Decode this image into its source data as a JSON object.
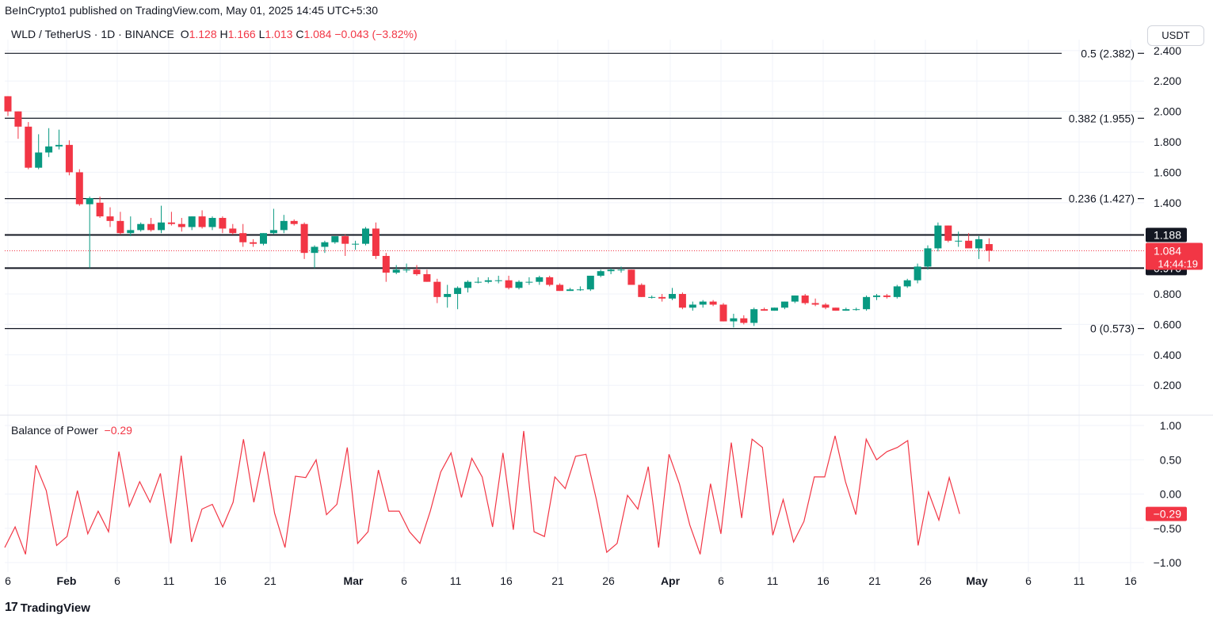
{
  "publisher_line": "BeInCrypto1 published on TradingView.com, May 01, 2025 14:45 UTC+5:30",
  "header": {
    "symbol": "WLD / TetherUS · 1D · BINANCE",
    "open_label": "O",
    "open": "1.128",
    "high_label": "H",
    "high": "1.166",
    "low_label": "L",
    "low": "1.013",
    "close_label": "C",
    "close": "1.084",
    "change": "−0.043 (−3.82%)"
  },
  "currency_button": "USDT",
  "brand": {
    "logo": "17",
    "name": "TradingView"
  },
  "colors": {
    "up": "#089981",
    "down": "#f23645",
    "grid": "#f0f3fa",
    "line": "#131722",
    "bop": "#f23645"
  },
  "chart_data": [
    {
      "type": "candlestick",
      "title": "WLD / TetherUS · 1D · BINANCE",
      "ylabel": "USDT",
      "ylim": [
        0.05,
        2.42
      ],
      "y_ticks": [
        "2.400",
        "2.200",
        "2.000",
        "1.800",
        "1.600",
        "1.400",
        "0.800",
        "0.600",
        "0.400",
        "0.200"
      ],
      "x_ticks": [
        "6",
        "Feb",
        "6",
        "11",
        "16",
        "21",
        "Mar",
        "6",
        "11",
        "16",
        "21",
        "26",
        "Apr",
        "6",
        "11",
        "16",
        "21",
        "26",
        "May",
        "6",
        "11",
        "16"
      ],
      "candles_ohlc": [
        [
          2.1,
          2.1,
          1.97,
          2.0
        ],
        [
          2.0,
          2.0,
          1.82,
          1.9
        ],
        [
          1.9,
          1.93,
          1.62,
          1.63
        ],
        [
          1.63,
          1.85,
          1.62,
          1.73
        ],
        [
          1.73,
          1.89,
          1.7,
          1.77
        ],
        [
          1.77,
          1.88,
          1.75,
          1.78
        ],
        [
          1.78,
          1.81,
          1.58,
          1.6
        ],
        [
          1.6,
          1.62,
          1.38,
          1.39
        ],
        [
          1.39,
          1.44,
          0.97,
          1.43
        ],
        [
          1.4,
          1.44,
          1.3,
          1.31
        ],
        [
          1.31,
          1.37,
          1.24,
          1.28
        ],
        [
          1.28,
          1.34,
          1.19,
          1.2
        ],
        [
          1.2,
          1.31,
          1.18,
          1.22
        ],
        [
          1.22,
          1.27,
          1.21,
          1.26
        ],
        [
          1.26,
          1.3,
          1.21,
          1.22
        ],
        [
          1.22,
          1.38,
          1.2,
          1.27
        ],
        [
          1.27,
          1.34,
          1.25,
          1.26
        ],
        [
          1.26,
          1.3,
          1.21,
          1.24
        ],
        [
          1.24,
          1.31,
          1.22,
          1.31
        ],
        [
          1.31,
          1.35,
          1.23,
          1.24
        ],
        [
          1.24,
          1.31,
          1.22,
          1.3
        ],
        [
          1.3,
          1.31,
          1.2,
          1.23
        ],
        [
          1.23,
          1.26,
          1.19,
          1.2
        ],
        [
          1.2,
          1.26,
          1.11,
          1.14
        ],
        [
          1.14,
          1.16,
          1.11,
          1.13
        ],
        [
          1.13,
          1.2,
          1.12,
          1.2
        ],
        [
          1.2,
          1.36,
          1.19,
          1.22
        ],
        [
          1.22,
          1.32,
          1.2,
          1.28
        ],
        [
          1.28,
          1.29,
          1.25,
          1.26
        ],
        [
          1.26,
          1.27,
          1.03,
          1.07
        ],
        [
          1.07,
          1.12,
          0.97,
          1.11
        ],
        [
          1.11,
          1.15,
          1.07,
          1.14
        ],
        [
          1.14,
          1.18,
          1.13,
          1.18
        ],
        [
          1.18,
          1.19,
          1.05,
          1.13
        ],
        [
          1.13,
          1.15,
          1.09,
          1.13
        ],
        [
          1.13,
          1.24,
          1.12,
          1.23
        ],
        [
          1.23,
          1.27,
          1.03,
          1.05
        ],
        [
          1.05,
          1.07,
          0.88,
          0.94
        ],
        [
          0.94,
          0.99,
          0.93,
          0.96
        ],
        [
          0.96,
          1.0,
          0.94,
          0.96
        ],
        [
          0.96,
          0.99,
          0.92,
          0.93
        ],
        [
          0.93,
          0.96,
          0.88,
          0.88
        ],
        [
          0.88,
          0.9,
          0.74,
          0.78
        ],
        [
          0.78,
          0.86,
          0.71,
          0.8
        ],
        [
          0.8,
          0.85,
          0.7,
          0.84
        ],
        [
          0.84,
          0.89,
          0.81,
          0.88
        ],
        [
          0.88,
          0.91,
          0.87,
          0.88
        ],
        [
          0.88,
          0.91,
          0.87,
          0.89
        ],
        [
          0.89,
          0.92,
          0.87,
          0.89
        ],
        [
          0.89,
          0.92,
          0.83,
          0.84
        ],
        [
          0.84,
          0.89,
          0.83,
          0.88
        ],
        [
          0.88,
          0.91,
          0.86,
          0.88
        ],
        [
          0.88,
          0.92,
          0.86,
          0.91
        ],
        [
          0.91,
          0.92,
          0.85,
          0.86
        ],
        [
          0.86,
          0.87,
          0.82,
          0.82
        ],
        [
          0.82,
          0.84,
          0.82,
          0.83
        ],
        [
          0.83,
          0.85,
          0.82,
          0.83
        ],
        [
          0.83,
          0.92,
          0.82,
          0.92
        ],
        [
          0.92,
          0.96,
          0.91,
          0.95
        ],
        [
          0.95,
          0.97,
          0.93,
          0.96
        ],
        [
          0.96,
          0.98,
          0.94,
          0.96
        ],
        [
          0.96,
          0.96,
          0.86,
          0.86
        ],
        [
          0.86,
          0.87,
          0.78,
          0.78
        ],
        [
          0.78,
          0.79,
          0.77,
          0.78
        ],
        [
          0.78,
          0.8,
          0.75,
          0.77
        ],
        [
          0.77,
          0.84,
          0.76,
          0.8
        ],
        [
          0.8,
          0.81,
          0.7,
          0.71
        ],
        [
          0.71,
          0.75,
          0.69,
          0.73
        ],
        [
          0.73,
          0.76,
          0.71,
          0.75
        ],
        [
          0.75,
          0.76,
          0.72,
          0.73
        ],
        [
          0.73,
          0.74,
          0.62,
          0.62
        ],
        [
          0.62,
          0.67,
          0.58,
          0.64
        ],
        [
          0.64,
          0.66,
          0.6,
          0.61
        ],
        [
          0.61,
          0.71,
          0.59,
          0.7
        ],
        [
          0.7,
          0.71,
          0.69,
          0.69
        ],
        [
          0.69,
          0.71,
          0.69,
          0.71
        ],
        [
          0.71,
          0.75,
          0.7,
          0.75
        ],
        [
          0.75,
          0.79,
          0.74,
          0.79
        ],
        [
          0.79,
          0.8,
          0.73,
          0.74
        ],
        [
          0.74,
          0.77,
          0.72,
          0.73
        ],
        [
          0.73,
          0.74,
          0.7,
          0.71
        ],
        [
          0.71,
          0.71,
          0.69,
          0.69
        ],
        [
          0.69,
          0.71,
          0.69,
          0.7
        ],
        [
          0.7,
          0.71,
          0.69,
          0.7
        ],
        [
          0.7,
          0.79,
          0.69,
          0.78
        ],
        [
          0.78,
          0.8,
          0.76,
          0.79
        ],
        [
          0.79,
          0.8,
          0.77,
          0.78
        ],
        [
          0.78,
          0.86,
          0.77,
          0.85
        ],
        [
          0.85,
          0.9,
          0.84,
          0.89
        ],
        [
          0.89,
          1.0,
          0.87,
          0.98
        ],
        [
          0.98,
          1.12,
          0.96,
          1.1
        ],
        [
          1.1,
          1.27,
          1.08,
          1.25
        ],
        [
          1.25,
          1.25,
          1.14,
          1.15
        ],
        [
          1.15,
          1.21,
          1.11,
          1.15
        ],
        [
          1.15,
          1.2,
          1.11,
          1.1
        ],
        [
          1.1,
          1.18,
          1.03,
          1.16
        ],
        [
          1.128,
          1.166,
          1.013,
          1.084
        ]
      ],
      "candle_dates_note": "",
      "last_price": "1.084",
      "countdown": "14:44:19",
      "levels": [
        {
          "value": 2.382,
          "label": "0.5 (2.382)"
        },
        {
          "value": 1.955,
          "label": "0.382 (1.955)"
        },
        {
          "value": 1.427,
          "label": "0.236 (1.427)"
        },
        {
          "value": 0.573,
          "label": "0 (0.573)"
        }
      ],
      "horizontal_lines": [
        {
          "value": 1.188,
          "label": "1.188"
        },
        {
          "value": 0.97,
          "label": "0.970"
        }
      ]
    },
    {
      "type": "line",
      "title": "Balance of Power",
      "current_value": "−0.29",
      "ylim": [
        -1.0,
        1.0
      ],
      "y_ticks": [
        "1.00",
        "0.50",
        "0.00",
        "−0.50",
        "−1.00"
      ],
      "values": [
        -0.78,
        -0.48,
        -0.88,
        0.42,
        0.05,
        -0.75,
        -0.62,
        0.05,
        -0.58,
        -0.25,
        -0.55,
        0.62,
        -0.18,
        0.18,
        -0.12,
        0.3,
        -0.72,
        0.56,
        -0.7,
        -0.22,
        -0.15,
        -0.48,
        -0.12,
        0.8,
        -0.12,
        0.62,
        -0.28,
        -0.78,
        0.26,
        0.24,
        0.5,
        -0.3,
        -0.15,
        0.68,
        -0.72,
        -0.55,
        0.35,
        -0.25,
        -0.25,
        -0.55,
        -0.72,
        -0.25,
        0.32,
        0.6,
        -0.05,
        0.52,
        0.25,
        -0.48,
        0.6,
        -0.52,
        0.92,
        -0.55,
        -0.62,
        0.25,
        0.08,
        0.55,
        0.58,
        -0.08,
        -0.85,
        -0.72,
        -0.02,
        -0.22,
        0.4,
        -0.78,
        0.58,
        0.15,
        -0.45,
        -0.88,
        0.15,
        -0.58,
        0.75,
        -0.35,
        0.8,
        0.68,
        -0.6,
        -0.08,
        -0.7,
        -0.4,
        0.25,
        0.25,
        0.85,
        0.18,
        -0.3,
        0.8,
        0.5,
        0.62,
        0.68,
        0.78,
        -0.75,
        0.03,
        -0.38,
        0.24,
        -0.29
      ],
      "last_label": "−0.29"
    }
  ]
}
